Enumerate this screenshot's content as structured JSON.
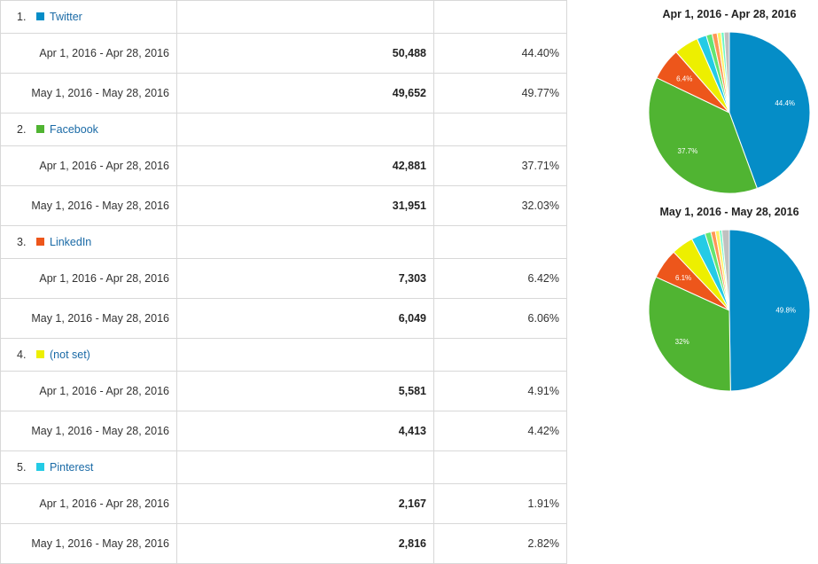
{
  "rows": [
    {
      "rank": "1.",
      "source": "Twitter",
      "color": "#058dc7",
      "periods": [
        {
          "range": "Apr 1, 2016 - Apr 28, 2016",
          "sessions": "50,488",
          "pct": "44.40%"
        },
        {
          "range": "May 1, 2016 - May 28, 2016",
          "sessions": "49,652",
          "pct": "49.77%"
        }
      ]
    },
    {
      "rank": "2.",
      "source": "Facebook",
      "color": "#50b432",
      "periods": [
        {
          "range": "Apr 1, 2016 - Apr 28, 2016",
          "sessions": "42,881",
          "pct": "37.71%"
        },
        {
          "range": "May 1, 2016 - May 28, 2016",
          "sessions": "31,951",
          "pct": "32.03%"
        }
      ]
    },
    {
      "rank": "3.",
      "source": "LinkedIn",
      "color": "#ed561b",
      "periods": [
        {
          "range": "Apr 1, 2016 - Apr 28, 2016",
          "sessions": "7,303",
          "pct": "6.42%"
        },
        {
          "range": "May 1, 2016 - May 28, 2016",
          "sessions": "6,049",
          "pct": "6.06%"
        }
      ]
    },
    {
      "rank": "4.",
      "source": "(not set)",
      "color": "#edef00",
      "periods": [
        {
          "range": "Apr 1, 2016 - Apr 28, 2016",
          "sessions": "5,581",
          "pct": "4.91%"
        },
        {
          "range": "May 1, 2016 - May 28, 2016",
          "sessions": "4,413",
          "pct": "4.42%"
        }
      ]
    },
    {
      "rank": "5.",
      "source": "Pinterest",
      "color": "#24cbe5",
      "periods": [
        {
          "range": "Apr 1, 2016 - Apr 28, 2016",
          "sessions": "2,167",
          "pct": "1.91%"
        },
        {
          "range": "May 1, 2016 - May 28, 2016",
          "sessions": "2,816",
          "pct": "2.82%"
        }
      ]
    }
  ],
  "chart_data": [
    {
      "type": "pie",
      "title": "Apr 1, 2016 - Apr 28, 2016",
      "slices": [
        {
          "name": "Twitter",
          "value": 44.4,
          "color": "#058dc7",
          "label": "44.4%"
        },
        {
          "name": "Facebook",
          "value": 37.71,
          "color": "#50b432",
          "label": "37.7%"
        },
        {
          "name": "LinkedIn",
          "value": 6.42,
          "color": "#ed561b",
          "label": "6.4%"
        },
        {
          "name": "(not set)",
          "value": 4.91,
          "color": "#edef00",
          "label": ""
        },
        {
          "name": "Pinterest",
          "value": 1.91,
          "color": "#24cbe5",
          "label": ""
        },
        {
          "name": "",
          "value": 1.2,
          "color": "#64e572",
          "label": ""
        },
        {
          "name": "",
          "value": 1.0,
          "color": "#ff9655",
          "label": ""
        },
        {
          "name": "",
          "value": 0.8,
          "color": "#fff263",
          "label": ""
        },
        {
          "name": "",
          "value": 0.6,
          "color": "#6af9c4",
          "label": ""
        },
        {
          "name": "",
          "value": 1.05,
          "color": "#c0c0c0",
          "label": ""
        }
      ]
    },
    {
      "type": "pie",
      "title": "May 1, 2016 - May 28, 2016",
      "slices": [
        {
          "name": "Twitter",
          "value": 49.77,
          "color": "#058dc7",
          "label": "49.8%"
        },
        {
          "name": "Facebook",
          "value": 32.03,
          "color": "#50b432",
          "label": "32%"
        },
        {
          "name": "LinkedIn",
          "value": 6.06,
          "color": "#ed561b",
          "label": "6.1%"
        },
        {
          "name": "(not set)",
          "value": 4.42,
          "color": "#edef00",
          "label": ""
        },
        {
          "name": "Pinterest",
          "value": 2.82,
          "color": "#24cbe5",
          "label": ""
        },
        {
          "name": "",
          "value": 1.2,
          "color": "#64e572",
          "label": ""
        },
        {
          "name": "",
          "value": 0.9,
          "color": "#ff9655",
          "label": ""
        },
        {
          "name": "",
          "value": 0.8,
          "color": "#fff263",
          "label": ""
        },
        {
          "name": "",
          "value": 0.5,
          "color": "#6af9c4",
          "label": ""
        },
        {
          "name": "",
          "value": 1.5,
          "color": "#c0c0c0",
          "label": ""
        }
      ]
    }
  ]
}
